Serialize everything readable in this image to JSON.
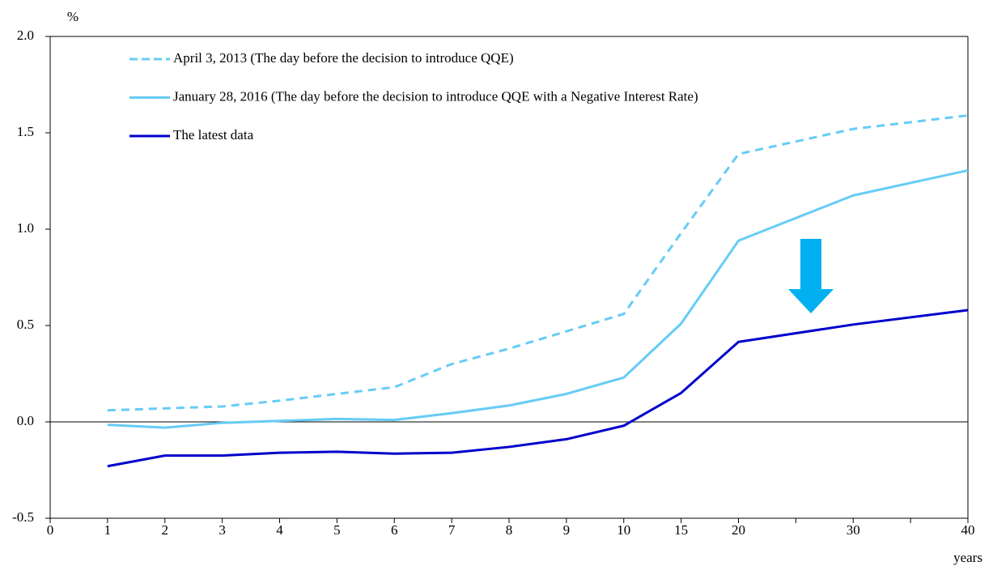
{
  "chart_data": {
    "type": "line",
    "y_unit": "%",
    "x_unit": "years",
    "xticks": [
      "0",
      "1",
      "2",
      "3",
      "4",
      "5",
      "6",
      "7",
      "8",
      "9",
      "10",
      "15",
      "20",
      null,
      "30",
      null,
      "40"
    ],
    "x": [
      "1",
      "2",
      "3",
      "4",
      "5",
      "6",
      "7",
      "8",
      "9",
      "10",
      "15",
      "20",
      "30",
      "40"
    ],
    "ylim": [
      -0.5,
      2.0
    ],
    "yticks": [
      {
        "value": -0.5,
        "label": "-0.5"
      },
      {
        "value": 0,
        "label": "0.0"
      },
      {
        "value": 0.5,
        "label": "0.5"
      },
      {
        "value": 1,
        "label": "1.0"
      },
      {
        "value": 1.5,
        "label": "1.5"
      },
      {
        "value": 2,
        "label": "2.0"
      }
    ],
    "zero_line": true,
    "series": [
      {
        "name": "April 3, 2013 (The day before the decision to introduce QQE)",
        "color": "#66ccf5",
        "dashed": true,
        "values": [
          0.06,
          0.07,
          0.08,
          0.11,
          0.145,
          0.18,
          0.3,
          0.38,
          0.47,
          0.56,
          0.98,
          1.39,
          1.52,
          1.59
        ]
      },
      {
        "name": "January 28, 2016 (The day before the decision to introduce QQE with a Negative Interest Rate)",
        "color": "#66ccf5",
        "dashed": false,
        "values": [
          -0.015,
          -0.03,
          -0.005,
          0.005,
          0.015,
          0.01,
          0.045,
          0.085,
          0.145,
          0.23,
          0.51,
          0.94,
          1.175,
          1.305
        ]
      },
      {
        "name": "The latest data",
        "color": "#0000cc",
        "dashed": false,
        "values": [
          -0.23,
          -0.175,
          -0.175,
          -0.16,
          -0.155,
          -0.165,
          -0.16,
          -0.13,
          -0.09,
          -0.02,
          0.15,
          0.415,
          0.505,
          0.58
        ]
      }
    ]
  }
}
